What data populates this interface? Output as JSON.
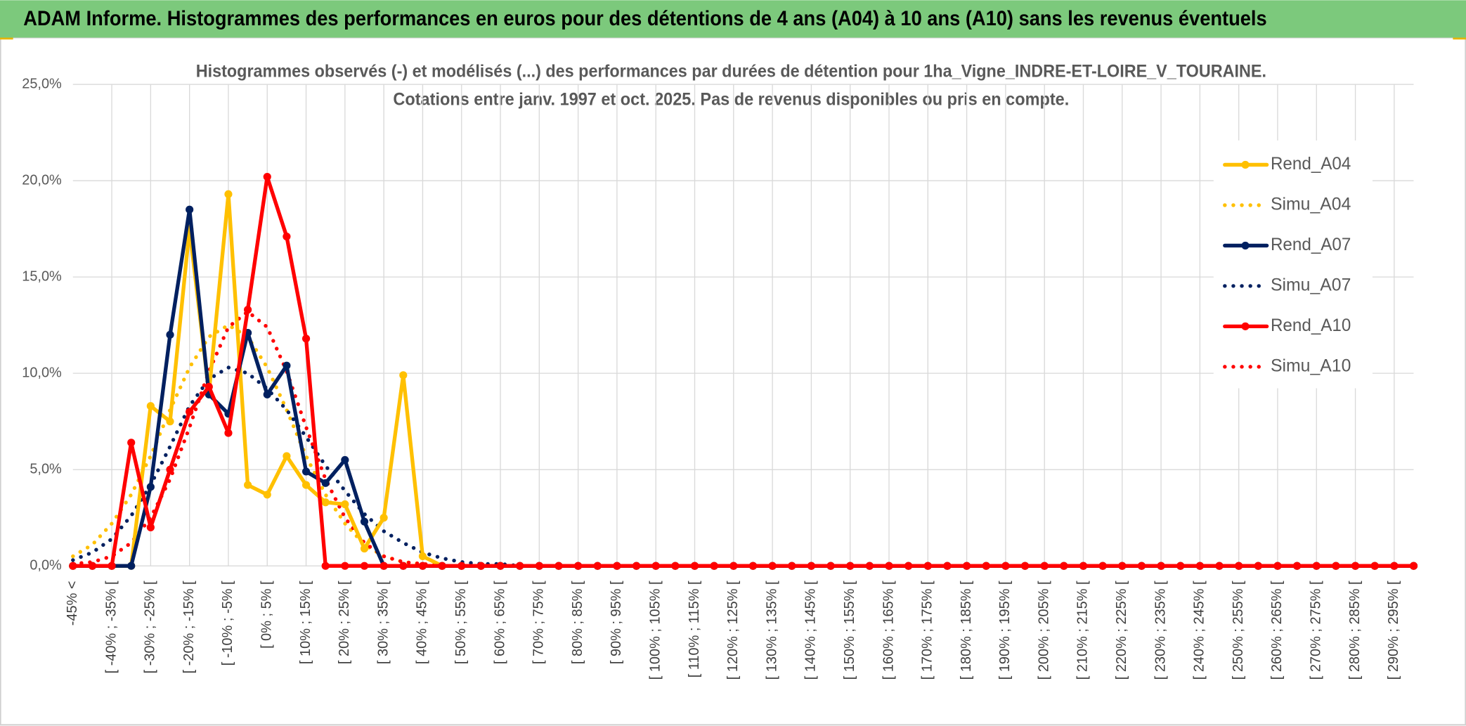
{
  "header": {
    "title": "ADAM Informe. Histogrammes des performances en euros pour des détentions de 4 ans (A04) à 10 ans (A10) sans les revenus éventuels"
  },
  "chart_data": {
    "type": "line",
    "title": [
      "Histogrammes observés (-) et modélisés (...) des performances par durées de détention pour 1ha_Vigne_INDRE-ET-LOIRE_V_TOURAINE.",
      "Cotations entre janv. 1997 et oct. 2025. Pas de revenus disponibles ou pris en compte."
    ],
    "categories": [
      "-45% <",
      null,
      "[ -40% ; -35% [",
      null,
      "[ -30% ; -25% [",
      null,
      "[ -20% ; -15% [",
      null,
      "[ -10% ; -5% [",
      null,
      "[ 0% ; 5% [",
      null,
      "[ 10% ; 15% [",
      null,
      "[ 20% ; 25% [",
      null,
      "[ 30% ; 35% [",
      null,
      "[ 40% ; 45% [",
      null,
      "[ 50% ; 55% [",
      null,
      "[ 60% ; 65% [",
      null,
      "[ 70% ; 75% [",
      null,
      "[ 80% ; 85% [",
      null,
      "[ 90% ; 95% [",
      null,
      "[ 100% ; 105% [",
      null,
      "[ 110% ; 115% [",
      null,
      "[ 120% ; 125% [",
      null,
      "[ 130% ; 135% [",
      null,
      "[ 140% ; 145% [",
      null,
      "[ 150% ; 155% [",
      null,
      "[ 160% ; 165% [",
      null,
      "[ 170% ; 175% [",
      null,
      "[ 180% ; 185% [",
      null,
      "[ 190% ; 195% [",
      null,
      "[ 200% ; 205% [",
      null,
      "[ 210% ; 215% [",
      null,
      "[ 220% ; 225% [",
      null,
      "[ 230% ; 235% [",
      null,
      "[ 240% ; 245% [",
      null,
      "[ 250% ; 255% [",
      null,
      "[ 260% ; 265% [",
      null,
      "[ 270% ; 275% [",
      null,
      "[ 280% ; 285% [",
      null,
      "[ 290% ; 295% [",
      null
    ],
    "series": [
      {
        "name": "Rend_A04",
        "color": "#ffc000",
        "style": "solid",
        "markers": true,
        "values": [
          0,
          0,
          0,
          0,
          8.3,
          7.5,
          17.5,
          9.0,
          19.3,
          4.2,
          3.7,
          5.7,
          4.2,
          3.3,
          3.2,
          0.9,
          2.5,
          9.9,
          0.5,
          0,
          0,
          0,
          0,
          0,
          0,
          0,
          0,
          0,
          0,
          0,
          0,
          0,
          0,
          0,
          0,
          0,
          0,
          0,
          0,
          0,
          0,
          0,
          0,
          0,
          0,
          0,
          0,
          0,
          0,
          0,
          0,
          0,
          0,
          0,
          0,
          0,
          0,
          0,
          0,
          0,
          0,
          0,
          0,
          0,
          0,
          0,
          0,
          0,
          0,
          0
        ]
      },
      {
        "name": "Simu_A04",
        "color": "#ffc000",
        "style": "dotted",
        "markers": false,
        "values": [
          0.5,
          1.1,
          2.2,
          3.7,
          5.7,
          8.1,
          10.3,
          11.9,
          12.5,
          11.9,
          10.3,
          8.1,
          5.7,
          3.7,
          2.2,
          1.1,
          0.5,
          0.2,
          0.1,
          0,
          0,
          0,
          0,
          0,
          0,
          0,
          0,
          0,
          0,
          0,
          0,
          0,
          0,
          0,
          0,
          0,
          0,
          0,
          0,
          0,
          0,
          0,
          0,
          0,
          0,
          0,
          0,
          0,
          0,
          0,
          0,
          0,
          0,
          0,
          0,
          0,
          0,
          0,
          0,
          0,
          0,
          0,
          0,
          0,
          0,
          0,
          0,
          0,
          0,
          0
        ]
      },
      {
        "name": "Rend_A07",
        "color": "#002060",
        "style": "solid",
        "markers": true,
        "values": [
          0,
          0,
          0,
          0,
          4.1,
          12.0,
          18.5,
          8.9,
          7.9,
          12.1,
          8.9,
          10.4,
          4.9,
          4.3,
          5.5,
          2.3,
          0,
          0,
          0,
          0,
          0,
          0,
          0,
          0,
          0,
          0,
          0,
          0,
          0,
          0,
          0,
          0,
          0,
          0,
          0,
          0,
          0,
          0,
          0,
          0,
          0,
          0,
          0,
          0,
          0,
          0,
          0,
          0,
          0,
          0,
          0,
          0,
          0,
          0,
          0,
          0,
          0,
          0,
          0,
          0,
          0,
          0,
          0,
          0,
          0,
          0,
          0,
          0,
          0,
          0
        ]
      },
      {
        "name": "Simu_A07",
        "color": "#002060",
        "style": "dotted",
        "markers": false,
        "values": [
          0.3,
          0.7,
          1.4,
          2.6,
          4.2,
          6.2,
          8.3,
          9.7,
          10.3,
          10.0,
          9.2,
          8.1,
          6.7,
          5.2,
          3.9,
          2.7,
          1.8,
          1.2,
          0.7,
          0.4,
          0.2,
          0.1,
          0.1,
          0,
          0,
          0,
          0,
          0,
          0,
          0,
          0,
          0,
          0,
          0,
          0,
          0,
          0,
          0,
          0,
          0,
          0,
          0,
          0,
          0,
          0,
          0,
          0,
          0,
          0,
          0,
          0,
          0,
          0,
          0,
          0,
          0,
          0,
          0,
          0,
          0,
          0,
          0,
          0,
          0,
          0,
          0,
          0,
          0,
          0,
          0
        ]
      },
      {
        "name": "Rend_A10",
        "color": "#ff0000",
        "style": "solid",
        "markers": true,
        "values": [
          0,
          0,
          0,
          6.4,
          2.0,
          5.0,
          8.0,
          9.3,
          6.9,
          13.3,
          20.2,
          17.1,
          11.8,
          0,
          0,
          0,
          0,
          0,
          0,
          0,
          0,
          0,
          0,
          0,
          0,
          0,
          0,
          0,
          0,
          0,
          0,
          0,
          0,
          0,
          0,
          0,
          0,
          0,
          0,
          0,
          0,
          0,
          0,
          0,
          0,
          0,
          0,
          0,
          0,
          0,
          0,
          0,
          0,
          0,
          0,
          0,
          0,
          0,
          0,
          0,
          0,
          0,
          0,
          0,
          0,
          0,
          0,
          0,
          0,
          0
        ]
      },
      {
        "name": "Simu_A10",
        "color": "#ff0000",
        "style": "dotted",
        "markers": false,
        "values": [
          0.1,
          0.2,
          0.5,
          1.2,
          2.5,
          4.5,
          7.2,
          10.1,
          12.4,
          13.2,
          12.4,
          10.1,
          7.2,
          4.5,
          2.5,
          1.2,
          0.5,
          0.2,
          0.1,
          0,
          0,
          0,
          0,
          0,
          0,
          0,
          0,
          0,
          0,
          0,
          0,
          0,
          0,
          0,
          0,
          0,
          0,
          0,
          0,
          0,
          0,
          0,
          0,
          0,
          0,
          0,
          0,
          0,
          0,
          0,
          0,
          0,
          0,
          0,
          0,
          0,
          0,
          0,
          0,
          0,
          0,
          0,
          0,
          0,
          0,
          0,
          0,
          0,
          0,
          0
        ]
      }
    ],
    "ylim": [
      0,
      25
    ],
    "yticks": [
      {
        "value": 0,
        "label": "0,0%"
      },
      {
        "value": 5,
        "label": "5,0%"
      },
      {
        "value": 10,
        "label": "10,0%"
      },
      {
        "value": 15,
        "label": "15,0%"
      },
      {
        "value": 20,
        "label": "20,0%"
      },
      {
        "value": 25,
        "label": "25,0%"
      }
    ],
    "grid": true,
    "legend": "right"
  }
}
